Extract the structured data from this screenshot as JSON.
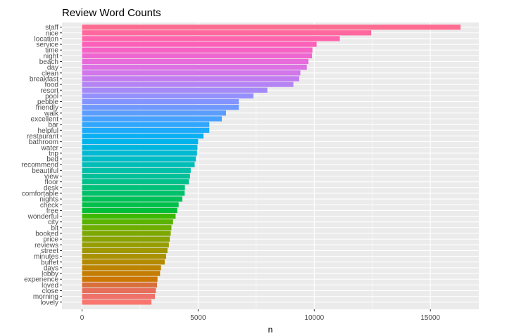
{
  "chart_data": {
    "type": "bar",
    "orientation": "horizontal",
    "title": "Review Word Counts",
    "xlabel": "n",
    "ylabel": "",
    "xlim": [
      0,
      17000
    ],
    "x_ticks": [
      0,
      5000,
      10000,
      15000
    ],
    "x_tick_labels": [
      "0",
      "5000",
      "10000",
      "15000"
    ],
    "grid": true,
    "legend": "none",
    "categories": [
      "staff",
      "nice",
      "location",
      "service",
      "time",
      "night",
      "beach",
      "day",
      "clean",
      "breakfast",
      "food",
      "resort",
      "pool",
      "pebble",
      "friendly",
      "walk",
      "excellent",
      "bar",
      "helpful",
      "restaurant",
      "bathroom",
      "water",
      "trip",
      "bed",
      "recommend",
      "beautiful",
      "view",
      "floor",
      "desk",
      "comfortable",
      "nights",
      "check",
      "free",
      "wonderful",
      "city",
      "bit",
      "booked",
      "price",
      "reviews",
      "street",
      "minutes",
      "buffet",
      "days",
      "lobby",
      "experience",
      "loved",
      "close",
      "morning",
      "lovely"
    ],
    "values": [
      16300,
      12450,
      11100,
      10100,
      9920,
      9900,
      9750,
      9680,
      9400,
      9350,
      9100,
      7980,
      7380,
      6750,
      6750,
      6200,
      6020,
      5480,
      5480,
      5230,
      5000,
      4970,
      4950,
      4900,
      4850,
      4680,
      4650,
      4600,
      4430,
      4420,
      4320,
      4160,
      4100,
      4030,
      3920,
      3850,
      3820,
      3780,
      3740,
      3680,
      3620,
      3560,
      3400,
      3360,
      3250,
      3230,
      3180,
      3140,
      2990
    ],
    "colors": [
      "#FF6C91",
      "#FF689F",
      "#FF65AC",
      "#FC61B9",
      "#F763C5",
      "#F066D0",
      "#E76BDA",
      "#DD71E3",
      "#D177EA",
      "#C37CF0",
      "#B584F4",
      "#A58AF7",
      "#9590FF",
      "#8494FF",
      "#7099FF",
      "#5C9EFF",
      "#47A2FF",
      "#30A7FF",
      "#1CABFB",
      "#0BAFF3",
      "#00B3EA",
      "#00B6DF",
      "#00B9D3",
      "#00BBC6",
      "#00BDB8",
      "#00BFA9",
      "#00C099",
      "#00C08B",
      "#00C17A",
      "#00C06A",
      "#00C05A",
      "#00BF4A",
      "#00BE37",
      "#3DB800",
      "#5AB300",
      "#6DAE00",
      "#7CA800",
      "#89A300",
      "#959D00",
      "#A09700",
      "#AA9100",
      "#B38A00",
      "#BC8400",
      "#C47D00",
      "#CC7600",
      "#D96F3A",
      "#E56F5A",
      "#EE7269",
      "#F8766D"
    ]
  }
}
